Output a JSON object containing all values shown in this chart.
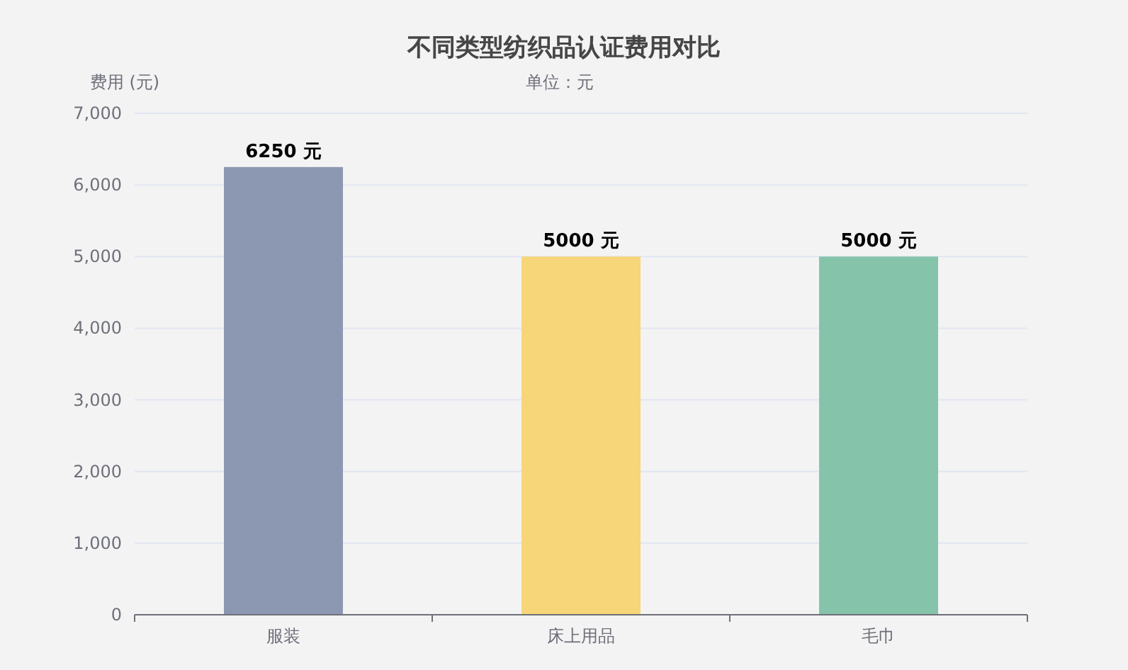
{
  "chart_data": {
    "type": "bar",
    "title": "不同类型纺织品认证费用对比",
    "subtitle": "单位：元",
    "ylabel": "费用 (元)",
    "categories": [
      "服装",
      "床上用品",
      "毛巾"
    ],
    "values": [
      6250,
      5000,
      5000
    ],
    "colors": [
      "#8c98b2",
      "#f6d678",
      "#86c3ab"
    ],
    "value_labels": [
      "6250 元",
      "5000 元",
      "5000 元"
    ],
    "ylim": [
      0,
      7000
    ],
    "yticks": [
      0,
      {
        "value": 1000,
        "label": "1,000"
      },
      {
        "value": 2000,
        "label": "2,000"
      },
      {
        "value": 3000,
        "label": "3,000"
      },
      {
        "value": 4000,
        "label": "4,000"
      },
      {
        "value": 5000,
        "label": "5,000"
      },
      {
        "value": 6000,
        "label": "6,000"
      },
      {
        "value": 7000,
        "label": "7,000"
      }
    ],
    "grid": "y"
  }
}
